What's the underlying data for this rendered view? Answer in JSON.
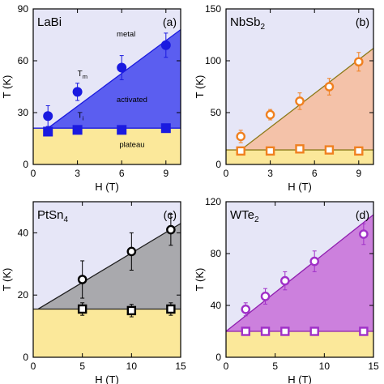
{
  "chart_data": [
    {
      "type": "scatter",
      "material": "LaBi",
      "material_sub": "",
      "panel": "(a)",
      "xlabel": "H (T)",
      "ylabel": "T (K)",
      "xlim": [
        0,
        10
      ],
      "ylim": [
        0,
        90
      ],
      "xticks": [
        0,
        3,
        6,
        9
      ],
      "yticks": [
        0,
        30,
        60,
        90
      ],
      "colors": {
        "top": "#e6e6f7",
        "mid": "#5b5ef0",
        "bottom": "#fbe89a",
        "line": "#1a1ae0",
        "marker": "#1a1ae0"
      },
      "marker_fill": "solid",
      "labels": {
        "top": "metal",
        "mid": "activated",
        "bottom": "plateau",
        "tm": "T",
        "tm_sub": "m",
        "ti": "T",
        "ti_sub": "i"
      },
      "boundary_line": {
        "x": [
          1,
          10
        ],
        "y": [
          21,
          78
        ]
      },
      "plateau": 21,
      "series": [
        {
          "name": "Tm",
          "x": [
            1,
            3,
            6,
            9
          ],
          "y": [
            28,
            42,
            56,
            69
          ],
          "err": [
            6,
            5,
            7,
            7
          ]
        },
        {
          "name": "Ti",
          "x": [
            1,
            3,
            6,
            9
          ],
          "y": [
            19,
            20,
            20,
            21
          ],
          "err": [
            2,
            1,
            1,
            1
          ]
        }
      ]
    },
    {
      "type": "scatter",
      "material": "NbSb",
      "material_sub": "2",
      "panel": "(b)",
      "xlabel": "H (T)",
      "ylabel": "T (K)",
      "xlim": [
        0,
        10
      ],
      "ylim": [
        0,
        150
      ],
      "xticks": [
        0,
        3,
        6,
        9
      ],
      "yticks": [
        0,
        50,
        100,
        150
      ],
      "colors": {
        "top": "#e6e6f7",
        "mid": "#f4c2a9",
        "bottom": "#fbe89a",
        "line": "#8c7a1a",
        "marker": "#f08020"
      },
      "marker_fill": "open",
      "labels": {
        "top": "",
        "mid": "",
        "bottom": "",
        "tm": "",
        "tm_sub": "",
        "ti": "",
        "ti_sub": ""
      },
      "boundary_line": {
        "x": [
          1,
          10
        ],
        "y": [
          14,
          112
        ]
      },
      "plateau": 14,
      "series": [
        {
          "name": "Tm",
          "x": [
            1,
            3,
            5,
            7,
            9
          ],
          "y": [
            27,
            48,
            61,
            75,
            99
          ],
          "err": [
            6,
            5,
            8,
            8,
            9
          ]
        },
        {
          "name": "Ti",
          "x": [
            1,
            3,
            5,
            7,
            9
          ],
          "y": [
            13,
            13,
            15,
            14,
            13
          ],
          "err": [
            3,
            3,
            2,
            2,
            2
          ]
        }
      ]
    },
    {
      "type": "scatter",
      "material": "PtSn",
      "material_sub": "4",
      "panel": "(c)",
      "xlabel": "H (T)",
      "ylabel": "T (K)",
      "xlim": [
        0,
        15
      ],
      "ylim": [
        0,
        50
      ],
      "xticks": [
        0,
        5,
        10,
        15
      ],
      "yticks": [
        0,
        20,
        40
      ],
      "colors": {
        "top": "#e6e6f7",
        "mid": "#a9a9ad",
        "bottom": "#fbe89a",
        "line": "#202020",
        "marker": "#000000"
      },
      "marker_fill": "open",
      "labels": {
        "top": "",
        "mid": "",
        "bottom": "",
        "tm": "",
        "tm_sub": "",
        "ti": "",
        "ti_sub": ""
      },
      "boundary_line": {
        "x": [
          0.5,
          15
        ],
        "y": [
          15.5,
          43
        ]
      },
      "plateau": 15.5,
      "series": [
        {
          "name": "Tm",
          "x": [
            5,
            10,
            14
          ],
          "y": [
            25,
            34,
            41
          ],
          "err": [
            6,
            6,
            5
          ]
        },
        {
          "name": "Ti",
          "x": [
            5,
            10,
            14
          ],
          "y": [
            15.5,
            15,
            15.5
          ],
          "err": [
            2,
            2,
            2
          ]
        }
      ]
    },
    {
      "type": "scatter",
      "material": "WTe",
      "material_sub": "2",
      "panel": "(d)",
      "xlabel": "H (T)",
      "ylabel": "T (K)",
      "xlim": [
        0,
        15
      ],
      "ylim": [
        0,
        120
      ],
      "xticks": [
        0,
        5,
        10,
        15
      ],
      "yticks": [
        0,
        40,
        80,
        120
      ],
      "colors": {
        "top": "#e6e6f7",
        "mid": "#cc80dd",
        "bottom": "#fbe89a",
        "line": "#9020b0",
        "marker": "#a030c8"
      },
      "marker_fill": "open",
      "labels": {
        "top": "",
        "mid": "",
        "bottom": "",
        "tm": "",
        "tm_sub": "",
        "ti": "",
        "ti_sub": ""
      },
      "boundary_line": {
        "x": [
          0,
          15
        ],
        "y": [
          20,
          110
        ]
      },
      "plateau": 20,
      "series": [
        {
          "name": "Tm",
          "x": [
            2,
            4,
            6,
            9,
            14
          ],
          "y": [
            37,
            47,
            59,
            74,
            95
          ],
          "err": [
            5,
            6,
            7,
            8,
            8
          ]
        },
        {
          "name": "Ti",
          "x": [
            2,
            4,
            6,
            9,
            14
          ],
          "y": [
            20,
            20,
            20,
            20,
            20
          ],
          "err": [
            2,
            2,
            2,
            2,
            2
          ]
        }
      ]
    }
  ]
}
